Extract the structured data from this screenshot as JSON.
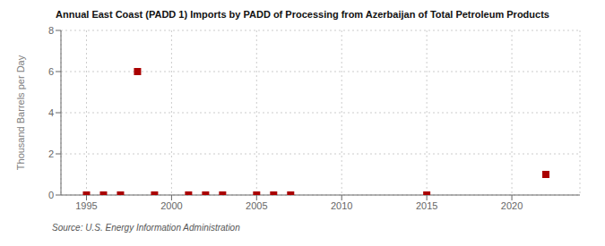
{
  "chart_data": {
    "type": "scatter",
    "title": "Annual East Coast (PADD 1) Imports by PADD of Processing from Azerbaijan of Total Petroleum Products",
    "ylabel": "Thousand Barrels per Day",
    "annotation": "Source: U.S. Energy Information Administration",
    "x": [
      1995,
      1996,
      1997,
      1998,
      1999,
      2001,
      2002,
      2003,
      2005,
      2006,
      2007,
      2015,
      2022
    ],
    "values": [
      0.0,
      0.0,
      0.0,
      6.0,
      0.0,
      0.0,
      0.0,
      0.0,
      0.0,
      0.0,
      0.0,
      0.0,
      1.0
    ],
    "color": "#aa0000",
    "marker": "square",
    "xlim": [
      1993.5,
      2024
    ],
    "xticks": [
      1995,
      2000,
      2005,
      2010,
      2015,
      2020
    ],
    "ylim": [
      0,
      8
    ],
    "yticks": [
      0,
      2,
      4,
      6,
      8
    ],
    "grid": true
  }
}
